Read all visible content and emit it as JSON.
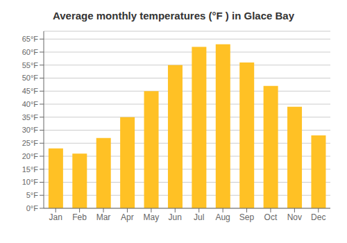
{
  "chart_data": {
    "type": "bar",
    "title": "Average monthly temperatures (°F ) in Glace Bay",
    "categories": [
      "Jan",
      "Feb",
      "Mar",
      "Apr",
      "May",
      "Jun",
      "Jul",
      "Aug",
      "Sep",
      "Oct",
      "Nov",
      "Dec"
    ],
    "values": [
      23,
      21,
      27,
      35,
      45,
      55,
      62,
      63,
      56,
      47,
      39,
      28
    ],
    "color": "#FFC125",
    "ylim": [
      0,
      68
    ],
    "yticks": [
      {
        "value": 0,
        "label": "0°F"
      },
      {
        "value": 5,
        "label": "5°F"
      },
      {
        "value": 10,
        "label": "10°F"
      },
      {
        "value": 15,
        "label": "15°F"
      },
      {
        "value": 20,
        "label": "20°F"
      },
      {
        "value": 25,
        "label": "25°F"
      },
      {
        "value": 30,
        "label": "30°F"
      },
      {
        "value": 35,
        "label": "35°F"
      },
      {
        "value": 40,
        "label": "40°F"
      },
      {
        "value": 45,
        "label": "45°F"
      },
      {
        "value": 50,
        "label": "50°F"
      },
      {
        "value": 55,
        "label": "55°F"
      },
      {
        "value": 60,
        "label": "60°F"
      },
      {
        "value": 65,
        "label": "65°F"
      }
    ],
    "grid": true
  }
}
